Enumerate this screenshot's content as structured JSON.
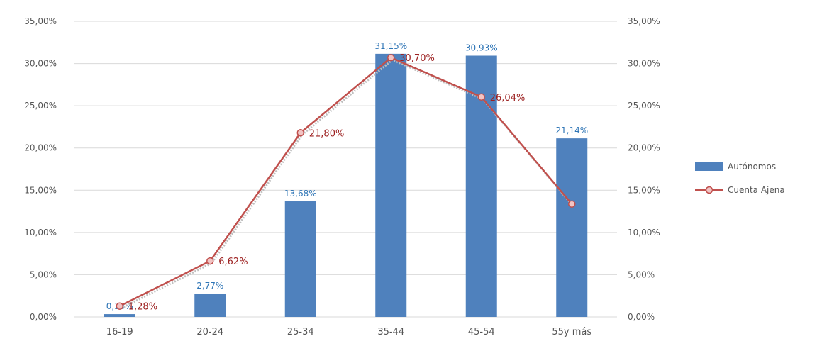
{
  "chart_data": {
    "type": "bar",
    "title": "",
    "xlabel": "",
    "ylabel": "",
    "categories": [
      "16-19",
      "20-24",
      "25-34",
      "35-44",
      "45-54",
      "55y más"
    ],
    "ylim": [
      0,
      35
    ],
    "yticks": [
      "0,00%",
      "5,00%",
      "10,00%",
      "15,00%",
      "20,00%",
      "25,00%",
      "30,00%",
      "35,00%"
    ],
    "grid": true,
    "legend_position": "right",
    "series": [
      {
        "name": "Autónomos",
        "type": "bar",
        "values": [
          0.33,
          2.77,
          13.68,
          31.15,
          30.93,
          21.14
        ],
        "labels": [
          "0,33%",
          "2,77%",
          "13,68%",
          "31,15%",
          "30,93%",
          "21,14%"
        ],
        "color": "#4f81bd",
        "label_color": "#2e75b6"
      },
      {
        "name": "Cuenta  Ajena",
        "type": "line",
        "values": [
          1.28,
          6.62,
          21.8,
          30.7,
          26.04,
          13.37
        ],
        "labels": [
          "1,28%",
          "6,62%",
          "21,80%",
          "30,70%",
          "26,04%",
          ""
        ],
        "color": "#c0504d",
        "marker_fill": "#f2c4c4",
        "label_color": "#9c1f1f"
      }
    ]
  }
}
